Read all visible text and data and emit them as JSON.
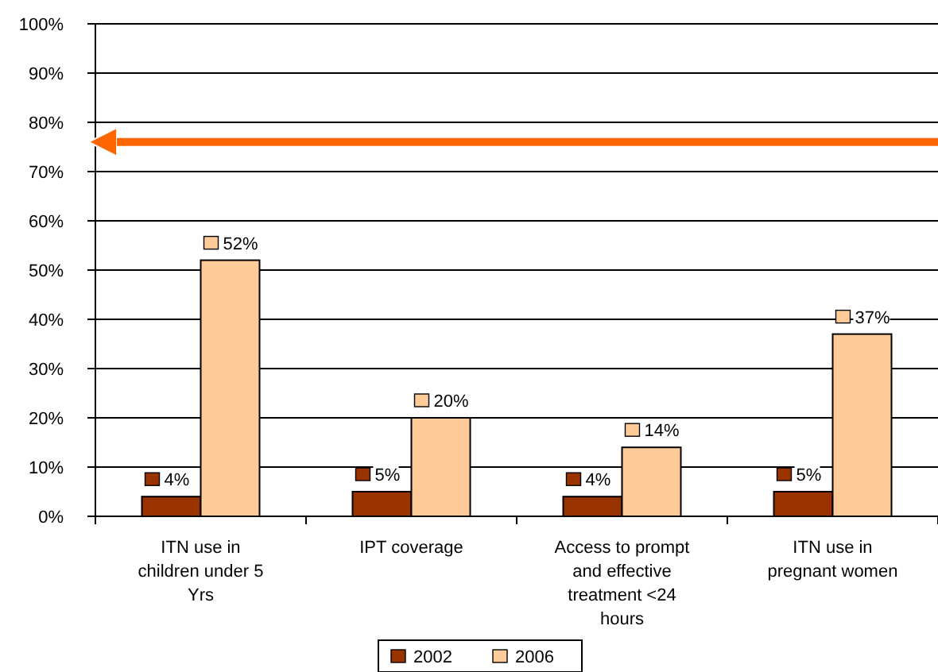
{
  "chart_data": {
    "type": "bar",
    "categories": [
      "ITN use in children under 5 Yrs",
      "IPT coverage",
      "Access to prompt and effective treatment <24 hours",
      "ITN use in pregnant women"
    ],
    "series": [
      {
        "name": "2002",
        "color": "#993300",
        "values": [
          4,
          5,
          4,
          5
        ],
        "value_labels": [
          "4%",
          "5%",
          "4%",
          "5%"
        ]
      },
      {
        "name": "2006",
        "color": "#ffcc99",
        "values": [
          52,
          20,
          14,
          37
        ],
        "value_labels": [
          "52%",
          "20%",
          "14%",
          "37%"
        ]
      }
    ],
    "ylim": [
      0,
      100
    ],
    "yticks": [
      {
        "value": 0,
        "label": "0%"
      },
      {
        "value": 10,
        "label": "10%"
      },
      {
        "value": 20,
        "label": "20%"
      },
      {
        "value": 30,
        "label": "30%"
      },
      {
        "value": 40,
        "label": "40%"
      },
      {
        "value": 50,
        "label": "50%"
      },
      {
        "value": 60,
        "label": "60%"
      },
      {
        "value": 70,
        "label": "70%"
      },
      {
        "value": 80,
        "label": "80%"
      },
      {
        "value": 90,
        "label": "90%"
      },
      {
        "value": 100,
        "label": "100%"
      }
    ],
    "grid": "y",
    "legend": "bottom",
    "ref_lines": [
      {
        "axis": "y",
        "value": 76,
        "color": "#ff6600"
      }
    ]
  }
}
